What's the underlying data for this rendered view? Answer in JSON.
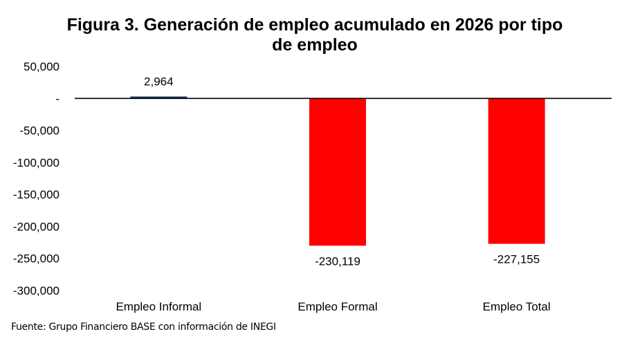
{
  "chart_data": {
    "type": "bar",
    "title_line1": "Figura 3. Generación de empleo acumulado en 2026 por tipo",
    "title_line2": "de empleo",
    "categories": [
      "Empleo Informal",
      "Empleo Formal",
      "Empleo Total"
    ],
    "values": [
      2964,
      -230119,
      -227155
    ],
    "data_labels": [
      "2,964",
      "-230,119",
      "-227,155"
    ],
    "ylim": [
      -300000,
      50000
    ],
    "yticks": [
      50000,
      0,
      -50000,
      -100000,
      -150000,
      -200000,
      -250000,
      -300000
    ],
    "ytick_labels": [
      "50,000",
      "-",
      "-50,000",
      "-100,000",
      "-150,000",
      "-200,000",
      "-250,000",
      "-300,000"
    ],
    "xlabel": "",
    "ylabel": "",
    "grid": false,
    "colors": {
      "positive": "#1f3864",
      "negative": "#ff0000",
      "axis": "#000000"
    }
  },
  "source": "Fuente: Grupo Financiero BASE con información de INEGI"
}
